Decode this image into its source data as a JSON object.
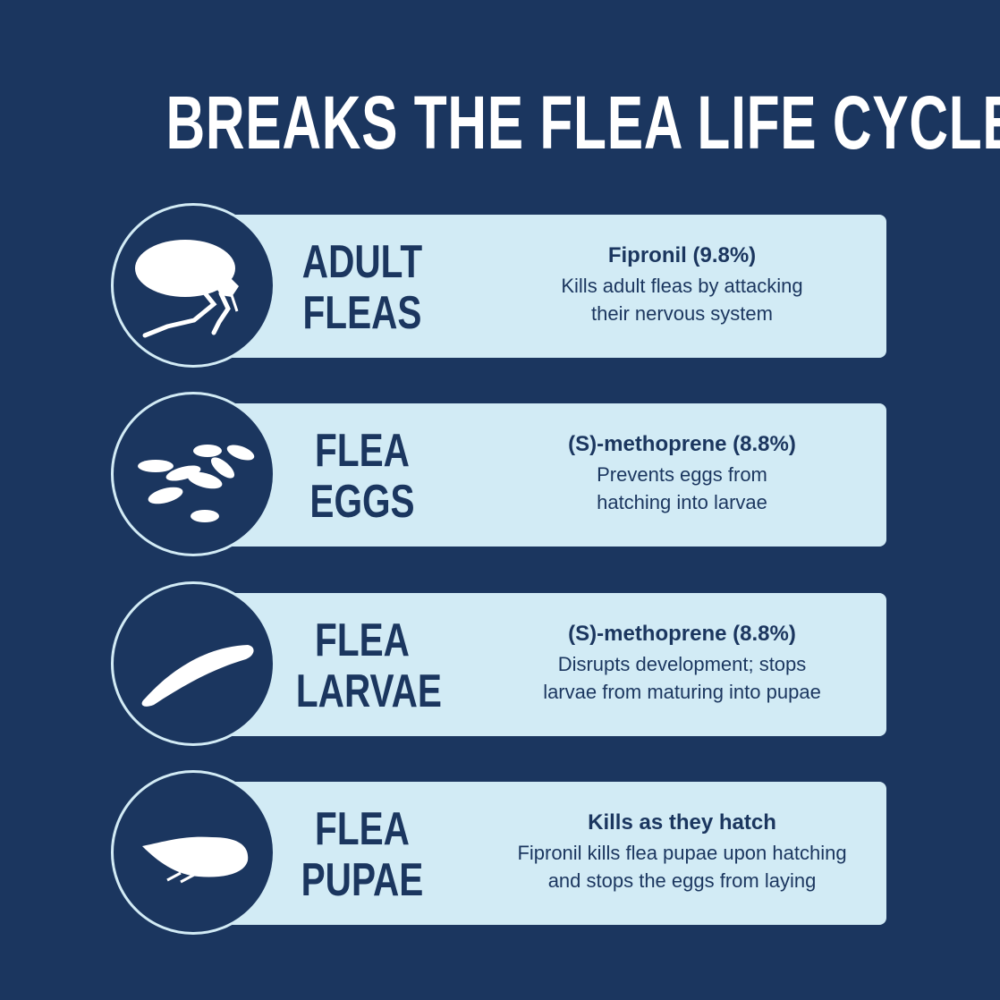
{
  "title": "BREAKS THE FLEA LIFE CYCLE",
  "colors": {
    "background": "#1b365f",
    "panel": "#d2ebf5",
    "text": "#1b365f"
  },
  "stages": [
    {
      "icon": "adult-flea-icon",
      "label_line1": "ADULT",
      "label_line2": "FLEAS",
      "heading": "Fipronil (9.8%)",
      "line1": "Kills adult fleas by attacking",
      "line2": "their nervous system"
    },
    {
      "icon": "flea-eggs-icon",
      "label_line1": "FLEA",
      "label_line2": "EGGS",
      "heading": "(S)-methoprene (8.8%)",
      "line1": "Prevents eggs from",
      "line2": "hatching into larvae"
    },
    {
      "icon": "flea-larva-icon",
      "label_line1": "FLEA",
      "label_line2": "LARVAE",
      "heading": "(S)-methoprene (8.8%)",
      "line1": "Disrupts development; stops",
      "line2": "larvae from maturing into pupae"
    },
    {
      "icon": "flea-pupa-icon",
      "label_line1": "FLEA",
      "label_line2": "PUPAE",
      "heading": "Kills as they hatch",
      "line1": "Fipronil kills flea pupae upon hatching",
      "line2": "and stops the eggs from laying"
    }
  ]
}
